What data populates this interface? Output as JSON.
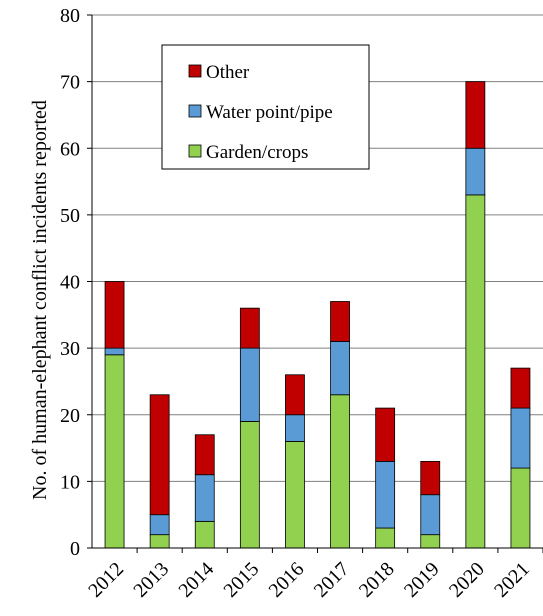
{
  "chart_data": {
    "type": "bar",
    "stacked": true,
    "title": "",
    "xlabel": "",
    "ylabel": "No. of human-elephant conflict incidents reported",
    "ylim": [
      0,
      80
    ],
    "yticks": [
      "0",
      "10",
      "20",
      "30",
      "40",
      "50",
      "60",
      "70",
      "80"
    ],
    "grid": true,
    "legend_position": "top-left",
    "categories": [
      "2012",
      "2013",
      "2014",
      "2015",
      "2016",
      "2017",
      "2018",
      "2019",
      "2020",
      "2021"
    ],
    "series": [
      {
        "name": "Garden/crops",
        "color": "#92d050",
        "values": [
          29,
          2,
          4,
          19,
          16,
          23,
          3,
          2,
          53,
          12
        ]
      },
      {
        "name": "Water point/pipe",
        "color": "#5b9bd5",
        "values": [
          1,
          3,
          7,
          11,
          4,
          8,
          10,
          6,
          7,
          9
        ]
      },
      {
        "name": "Other",
        "color": "#c00000",
        "values": [
          10,
          18,
          6,
          6,
          6,
          6,
          8,
          5,
          10,
          6
        ]
      }
    ],
    "legend_order": [
      "Other",
      "Water point/pipe",
      "Garden/crops"
    ]
  }
}
